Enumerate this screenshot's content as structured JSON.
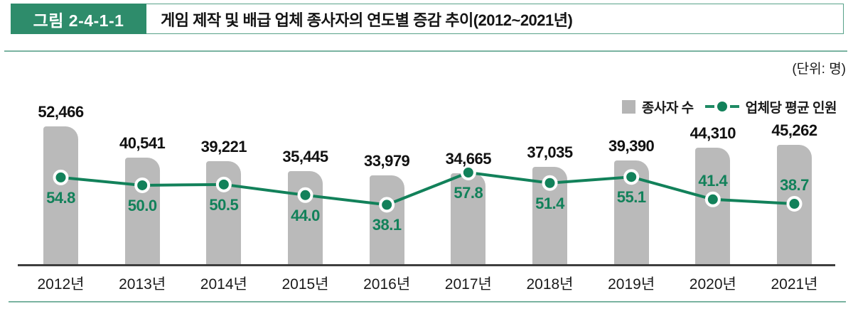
{
  "header": {
    "figure_label": "그림 2-4-1-1",
    "title": "게임 제작 및 배급 업체 종사자의 연도별 증감 추이(2012~2021년)"
  },
  "unit_note": "(단위: 명)",
  "legend": {
    "bar_label": "종사자 수",
    "line_label": "업체당 평균 인원"
  },
  "colors": {
    "header_green": "#2e8c6b",
    "chart_green": "#12815a",
    "bar_gray": "#bababa",
    "legend_gray": "#b5b5b5",
    "axis_dark": "#3e3e3e",
    "rule_teal": "#7ab3a1"
  },
  "chart_data": {
    "type": "combo",
    "title": "게임 제작 및 배급 업체 종사자의 연도별 증감 추이(2012~2021년)",
    "unit_note": "(단위: 명)",
    "categories": [
      "2012년",
      "2013년",
      "2014년",
      "2015년",
      "2016년",
      "2017년",
      "2018년",
      "2019년",
      "2020년",
      "2021년"
    ],
    "series": [
      {
        "name": "종사자 수",
        "type": "bar",
        "color": "#bababa",
        "values": [
          52466,
          40541,
          39221,
          35445,
          33979,
          34665,
          37035,
          39390,
          44310,
          45262
        ]
      },
      {
        "name": "업체당 평균 인원",
        "type": "line",
        "color": "#12815a",
        "values": [
          54.8,
          50.0,
          50.5,
          44.0,
          38.1,
          57.8,
          51.4,
          55.1,
          41.4,
          38.7
        ],
        "label_side": [
          "below",
          "below",
          "below",
          "below",
          "below",
          "below",
          "below",
          "below",
          "above",
          "above"
        ]
      }
    ],
    "legend_position": "top-right",
    "grid": false,
    "x_axis_visible": true,
    "y_axis_visible": false
  }
}
